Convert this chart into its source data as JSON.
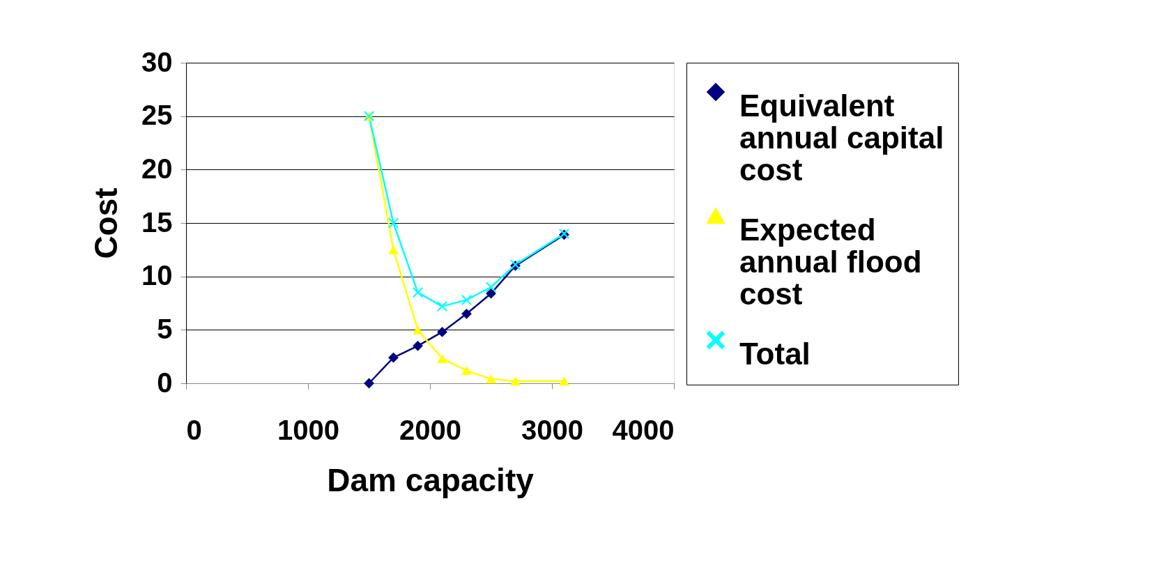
{
  "chart_data": {
    "type": "line",
    "xlabel": "Dam capacity",
    "ylabel": "Cost",
    "x": [
      1500,
      1700,
      1900,
      2100,
      2300,
      2500,
      2700,
      3100
    ],
    "series": [
      {
        "name": "Equivalent annual capital cost",
        "color": "#000080",
        "marker": "diamond",
        "values": [
          0,
          2.4,
          3.5,
          4.8,
          6.5,
          8.4,
          11,
          13.9
        ]
      },
      {
        "name": "Expected annual flood cost",
        "color": "#ffff00",
        "marker": "triangle",
        "values": [
          25,
          12.5,
          5,
          2.3,
          1.2,
          0.4,
          0.2,
          0.2
        ]
      },
      {
        "name": "Total",
        "color": "#00ffff",
        "marker": "cross",
        "values": [
          25,
          15,
          8.5,
          7.2,
          7.8,
          9,
          11.1,
          14
        ]
      }
    ],
    "xlim": [
      0,
      4000
    ],
    "xticks": [
      0,
      1000,
      2000,
      3000,
      4000
    ],
    "ylim": [
      0,
      30
    ],
    "yticks": [
      0,
      5,
      10,
      15,
      20,
      25,
      30
    ],
    "grid": "y",
    "legend": "right",
    "line_style": "solid"
  }
}
